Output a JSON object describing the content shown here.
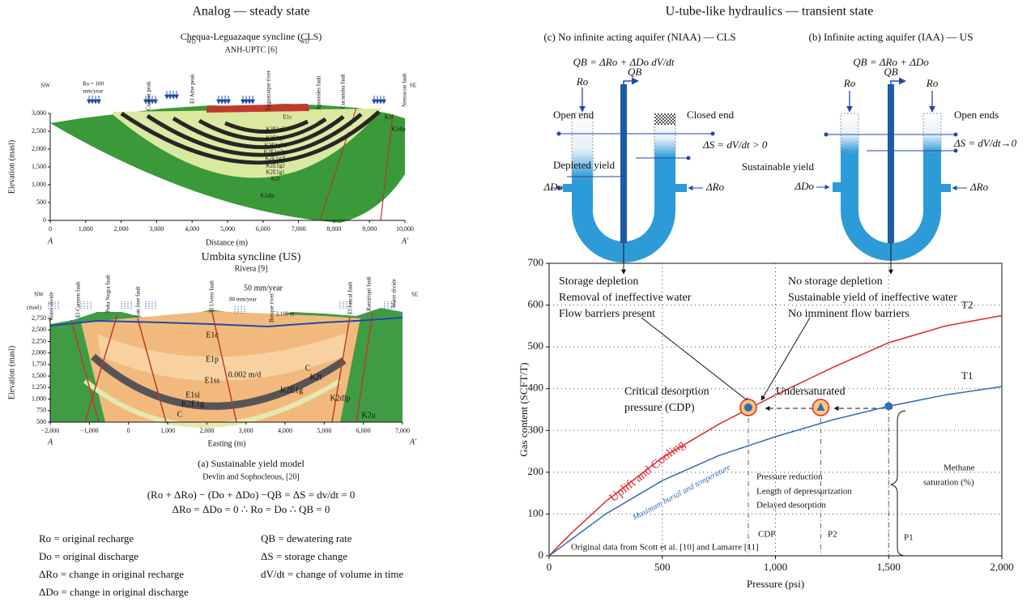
{
  "left": {
    "heading": "Analog — steady state",
    "top_section": {
      "title": "Chequa-Leguazaque syncline (CLS)",
      "source": "ANH-UPTC [6]",
      "xlabel": "Distance (m)",
      "ylabel": "Elevation (masl)",
      "xlim": [
        0,
        10000
      ],
      "xticks": [
        0,
        {
          "value": 1000,
          "label": "1,000"
        },
        {
          "value": 2000,
          "label": "2,000"
        },
        {
          "value": 3000,
          "label": "3,000"
        },
        {
          "value": 4000,
          "label": "4,000"
        },
        {
          "value": 5000,
          "label": "5,000"
        },
        {
          "value": 6000,
          "label": "6,000"
        },
        {
          "value": 7000,
          "label": "7,000"
        },
        {
          "value": 8000,
          "label": "8,000"
        },
        {
          "value": 9000,
          "label": "9,000"
        },
        {
          "value": 10000,
          "label": "10,000"
        }
      ],
      "ylim": [
        0,
        3000
      ],
      "yticks": [
        0,
        500,
        {
          "value": 1000,
          "label": "1,000"
        },
        {
          "value": 1500,
          "label": "1,500"
        },
        {
          "value": 2000,
          "label": "2,000"
        },
        {
          "value": 2500,
          "label": "2,500"
        },
        {
          "value": 3000,
          "label": "3,000"
        }
      ],
      "ends": [
        "A",
        "A′"
      ],
      "directions": [
        "NW",
        "SE"
      ],
      "labels": [
        "Ro = 100",
        "mm/year",
        "Cuaron peak",
        "El Arbe peak",
        "WD",
        "WD",
        "Leguazaque river",
        "Apostoles fault",
        "Cucunuba fault",
        "Nemocon fault",
        "K2E1g5",
        "K2E1g4",
        "K2E1g3u",
        "K2E1g3m",
        "K2E1g3l",
        "K2E1g2",
        "K2E1g1",
        "K2t",
        "K2dlp",
        "K2dlp",
        "E1c",
        "K2t"
      ]
    },
    "bottom_section": {
      "title": "Umbita syncline (US)",
      "source": "Rivera [9]",
      "xlabel": "Easting (m)",
      "ylabel": "Elevation (masl)",
      "yunit": "(masl)",
      "xlim": [
        -2000,
        7000
      ],
      "xticks": [
        {
          "value": -2000,
          "label": "−2,000"
        },
        {
          "value": -1000,
          "label": "−1,000"
        },
        0,
        {
          "value": 1000,
          "label": "1,000"
        },
        {
          "value": 2000,
          "label": "2,000"
        },
        {
          "value": 3000,
          "label": "3,000"
        },
        {
          "value": 4000,
          "label": "4,000"
        },
        {
          "value": 5000,
          "label": "5,000"
        },
        {
          "value": 6000,
          "label": "6,000"
        },
        {
          "value": 7000,
          "label": "7,000"
        }
      ],
      "ylim": [
        500,
        2750
      ],
      "yticks": [
        500,
        750,
        {
          "value": 1000,
          "label": "1,000"
        },
        {
          "value": 1250,
          "label": "1,250"
        },
        {
          "value": 1500,
          "label": "1,500"
        },
        {
          "value": 1750,
          "label": "1,750"
        },
        {
          "value": 2000,
          "label": "2,000"
        },
        {
          "value": 2250,
          "label": "2,250"
        },
        {
          "value": 2500,
          "label": "2,500"
        },
        {
          "value": 2750,
          "label": "2,750"
        }
      ],
      "ends": [
        "A",
        "A′"
      ],
      "directions": [
        "NW",
        "SE"
      ],
      "labels": [
        "Water divide",
        "El Carmen fault",
        "Peña Negra fault",
        "San Jose fault",
        "El Uvero fault",
        "50 mm/year",
        "80 mm/year",
        "2,100 m",
        "Bosque river",
        "El Juncal fault",
        "Ramiriquí fault",
        "Water divide",
        "E1c",
        "E1p",
        "0.002 m/d",
        "E1ss",
        "E1si",
        "K2E1g",
        "K2E1g",
        "K2t",
        "K2dlp",
        "K2u",
        "C",
        "C"
      ]
    },
    "caption": "(a) Sustainable yield model",
    "caption_source": "Devlin and Sophocleous, [20]",
    "equations": [
      "(Ro + ΔRo) − (Do + ΔDo) −QB = ΔS = dv/dt = 0",
      "ΔRo = ΔDo = 0 ∴ Ro = Do ∴ QB = 0"
    ],
    "definitions": [
      "Ro = original recharge",
      "Do = original discharge",
      "ΔRo = change in original recharge",
      "ΔDo = change in original discharge",
      "QB = dewatering rate",
      "ΔS = storage change",
      "dV/dt = change of volume in time"
    ]
  },
  "right": {
    "heading": "U-tube-like hydraulics — transient state",
    "niaa": {
      "title": "(c) No infinite acting aquifer (NIAA) — CLS",
      "formula": "QB = ΔRo + ΔDo dV/dt",
      "labels": [
        "Ro",
        "QB",
        "Open end",
        "Closed end",
        "ΔS = dV/dt > 0",
        "Depleted yield",
        "ΔDo",
        "ΔRo"
      ]
    },
    "iaa": {
      "title": "(b) Infinite acting aquifer (IAA) — US",
      "formula": "QB = ΔRo + ΔDo",
      "labels": [
        "Ro",
        "QB",
        "Ro",
        "Open ends",
        "ΔS = dV/dt→0",
        "Sustainable yield",
        "ΔDo",
        "ΔRo"
      ]
    }
  },
  "chart_data": {
    "type": "line",
    "xlabel": "Pressure (psi)",
    "ylabel": "Gas content (SCFT/T)",
    "x": [
      0,
      50,
      100,
      250,
      500,
      750,
      1000,
      1250,
      1500,
      1750,
      2000
    ],
    "series": [
      {
        "name": "T2",
        "color": "#e3262a",
        "values": [
          0,
          28,
          55,
          130,
          235,
          315,
          385,
          450,
          510,
          550,
          575
        ]
      },
      {
        "name": "T1",
        "color": "#2f6db5",
        "values": [
          0,
          20,
          40,
          100,
          180,
          240,
          285,
          325,
          358,
          385,
          405
        ]
      }
    ],
    "points": [
      {
        "x": 880,
        "y": 355
      },
      {
        "x": 1200,
        "y": 355
      },
      {
        "x": 1500,
        "y": 358
      }
    ],
    "xlim": [
      0,
      2000
    ],
    "xticks": [
      0,
      500,
      {
        "value": 1000,
        "label": "1,000"
      },
      {
        "value": 1500,
        "label": "1,500"
      },
      {
        "value": 2000,
        "label": "2,000"
      }
    ],
    "ylim": [
      0,
      700
    ],
    "yticks": [
      0,
      100,
      200,
      300,
      400,
      500,
      600,
      700
    ],
    "grid": true,
    "annotations": [
      "Storage depletion",
      "Removal of ineffective water",
      "Flow barriers present",
      "No storage depletion",
      "Sustainable yield of ineffective water",
      "No imminent flow barriers",
      "Critical desorption",
      "pressure (CDP)",
      "Undersaturated",
      "Uplift and Cooling",
      "Maximum burial and temperature",
      "Pressure reduction",
      "Length of depressurization",
      "Delayed desorption",
      "Methane",
      "saturation (%)",
      "CDP",
      "P2",
      "P1",
      "Original data from Scott et al. [10] and Lamarre [11]"
    ]
  }
}
